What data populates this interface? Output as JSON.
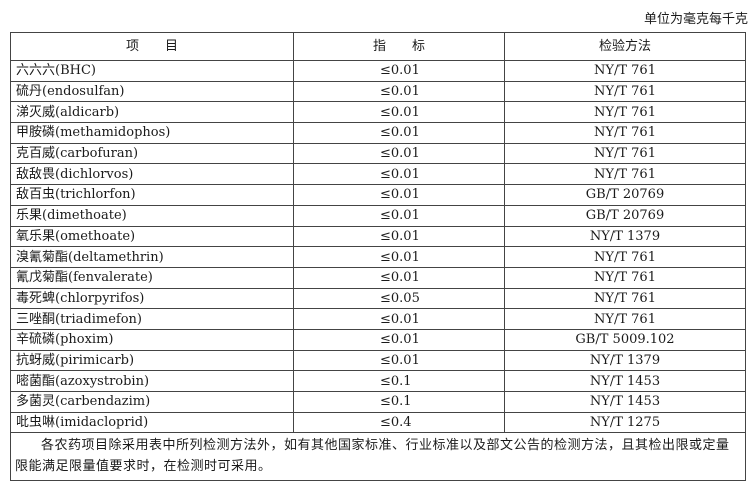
{
  "unit_note": "单位为毫克每千克",
  "headers": {
    "item": "项　　目",
    "limit": "指　　标",
    "method": "检验方法"
  },
  "rows": [
    {
      "item": "六六六(BHC)",
      "limit": "≤0.01",
      "method": "NY/T 761"
    },
    {
      "item": "硫丹(endosulfan)",
      "limit": "≤0.01",
      "method": "NY/T 761"
    },
    {
      "item": "涕灭威(aldicarb)",
      "limit": "≤0.01",
      "method": "NY/T 761"
    },
    {
      "item": "甲胺磷(methamidophos)",
      "limit": "≤0.01",
      "method": "NY/T 761"
    },
    {
      "item": "克百威(carbofuran)",
      "limit": "≤0.01",
      "method": "NY/T 761"
    },
    {
      "item": "敌敌畏(dichlorvos)",
      "limit": "≤0.01",
      "method": "NY/T 761"
    },
    {
      "item": "敌百虫(trichlorfon)",
      "limit": "≤0.01",
      "method": "GB/T 20769"
    },
    {
      "item": "乐果(dimethoate)",
      "limit": "≤0.01",
      "method": "GB/T 20769"
    },
    {
      "item": "氧乐果(omethoate)",
      "limit": "≤0.01",
      "method": "NY/T 1379"
    },
    {
      "item": "溴氰菊酯(deltamethrin)",
      "limit": "≤0.01",
      "method": "NY/T 761"
    },
    {
      "item": "氰戊菊酯(fenvalerate)",
      "limit": "≤0.01",
      "method": "NY/T 761"
    },
    {
      "item": "毒死蜱(chlorpyrifos)",
      "limit": "≤0.05",
      "method": "NY/T 761"
    },
    {
      "item": "三唑酮(triadimefon)",
      "limit": "≤0.01",
      "method": "NY/T 761"
    },
    {
      "item": "辛硫磷(phoxim)",
      "limit": "≤0.01",
      "method": "GB/T 5009.102"
    },
    {
      "item": "抗蚜威(pirimicarb)",
      "limit": "≤0.01",
      "method": "NY/T 1379"
    },
    {
      "item": "嘧菌酯(azoxystrobin)",
      "limit": "≤0.1",
      "method": "NY/T 1453"
    },
    {
      "item": "多菌灵(carbendazim)",
      "limit": "≤0.1",
      "method": "NY/T 1453"
    },
    {
      "item": "吡虫啉(imidacloprid)",
      "limit": "≤0.4",
      "method": "NY/T 1275"
    }
  ],
  "footnote": "各农药项目除采用表中所列检测方法外，如有其他国家标准、行业标准以及部文公告的检测方法，且其检出限或定量限能满足限量值要求时，在检测时可采用。"
}
